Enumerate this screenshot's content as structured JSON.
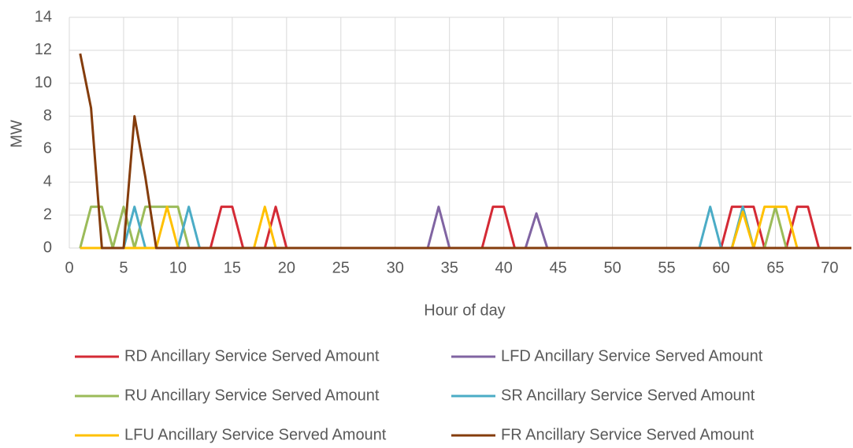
{
  "chart_data": {
    "type": "line",
    "x_label": "Hour of day",
    "y_label": "MW",
    "x": [
      1,
      2,
      3,
      4,
      5,
      6,
      7,
      8,
      9,
      10,
      11,
      12,
      13,
      14,
      15,
      16,
      17,
      18,
      19,
      20,
      21,
      22,
      23,
      24,
      25,
      26,
      27,
      28,
      29,
      30,
      31,
      32,
      33,
      34,
      35,
      36,
      37,
      38,
      39,
      40,
      41,
      42,
      43,
      44,
      45,
      46,
      47,
      48,
      49,
      50,
      51,
      52,
      53,
      54,
      55,
      56,
      57,
      58,
      59,
      60,
      61,
      62,
      63,
      64,
      65,
      66,
      67,
      68,
      69,
      70,
      71,
      72
    ],
    "series": [
      {
        "name": "RD Ancillary Service Served Amount",
        "color": "#d42a35",
        "values": [
          0,
          0,
          0,
          0,
          0,
          0,
          0,
          0,
          0,
          0,
          0,
          0,
          0,
          2.5,
          2.5,
          0,
          0,
          0,
          2.5,
          0,
          0,
          0,
          0,
          0,
          0,
          0,
          0,
          0,
          0,
          0,
          0,
          0,
          0,
          0,
          0,
          0,
          0,
          0,
          2.5,
          2.5,
          0,
          0,
          0,
          0,
          0,
          0,
          0,
          0,
          0,
          0,
          0,
          0,
          0,
          0,
          0,
          0,
          0,
          0,
          0,
          0,
          2.5,
          2.5,
          2.5,
          0,
          0,
          0,
          2.5,
          2.5,
          0,
          0,
          0,
          0
        ]
      },
      {
        "name": "LFD Ancillary Service Served Amount",
        "color": "#8064a2",
        "values": [
          0,
          0,
          0,
          0,
          0,
          0,
          0,
          0,
          0,
          0,
          0,
          0,
          0,
          0,
          0,
          0,
          0,
          0,
          0,
          0,
          0,
          0,
          0,
          0,
          0,
          0,
          0,
          0,
          0,
          0,
          0,
          0,
          0,
          2.5,
          0,
          0,
          0,
          0,
          0,
          0,
          0,
          0,
          2.1,
          0,
          0,
          0,
          0,
          0,
          0,
          0,
          0,
          0,
          0,
          0,
          0,
          0,
          0,
          0,
          0,
          0,
          0,
          0,
          0,
          0,
          0,
          0,
          0,
          0,
          0,
          0,
          0,
          0
        ]
      },
      {
        "name": "RU Ancillary Service Served Amount",
        "color": "#9bbb59",
        "values": [
          0,
          2.5,
          2.5,
          0,
          2.5,
          0,
          2.5,
          2.5,
          2.5,
          2.5,
          0,
          0,
          0,
          0,
          0,
          0,
          0,
          0,
          0,
          0,
          0,
          0,
          0,
          0,
          0,
          0,
          0,
          0,
          0,
          0,
          0,
          0,
          0,
          0,
          0,
          0,
          0,
          0,
          0,
          0,
          0,
          0,
          0,
          0,
          0,
          0,
          0,
          0,
          0,
          0,
          0,
          0,
          0,
          0,
          0,
          0,
          0,
          0,
          0,
          0,
          0,
          2.5,
          0,
          0,
          2.5,
          0,
          0,
          0,
          0,
          0,
          0,
          0
        ]
      },
      {
        "name": "SR Ancillary Service Served Amount",
        "color": "#4bacc6",
        "values": [
          0,
          0,
          0,
          0,
          0,
          2.5,
          0,
          0,
          0,
          0,
          2.5,
          0,
          0,
          0,
          0,
          0,
          0,
          0,
          0,
          0,
          0,
          0,
          0,
          0,
          0,
          0,
          0,
          0,
          0,
          0,
          0,
          0,
          0,
          0,
          0,
          0,
          0,
          0,
          0,
          0,
          0,
          0,
          0,
          0,
          0,
          0,
          0,
          0,
          0,
          0,
          0,
          0,
          0,
          0,
          0,
          0,
          0,
          0,
          2.5,
          0,
          0,
          2.5,
          0,
          0,
          0,
          0,
          0,
          0,
          0,
          0,
          0,
          0
        ]
      },
      {
        "name": "LFU Ancillary Service Served Amount",
        "color": "#ffc000",
        "values": [
          0,
          0,
          0,
          0,
          0,
          0,
          0,
          0,
          2.5,
          0,
          0,
          0,
          0,
          0,
          0,
          0,
          0,
          2.5,
          0,
          0,
          0,
          0,
          0,
          0,
          0,
          0,
          0,
          0,
          0,
          0,
          0,
          0,
          0,
          0,
          0,
          0,
          0,
          0,
          0,
          0,
          0,
          0,
          0,
          0,
          0,
          0,
          0,
          0,
          0,
          0,
          0,
          0,
          0,
          0,
          0,
          0,
          0,
          0,
          0,
          0,
          0,
          2.2,
          0,
          2.5,
          2.5,
          2.5,
          0,
          0,
          0,
          0,
          0,
          0
        ]
      },
      {
        "name": "FR Ancillary Service Served Amount",
        "color": "#843c0c",
        "values": [
          11.8,
          8.5,
          0,
          0,
          0,
          8,
          4.3,
          0,
          0,
          0,
          0,
          0,
          0,
          0,
          0,
          0,
          0,
          0,
          0,
          0,
          0,
          0,
          0,
          0,
          0,
          0,
          0,
          0,
          0,
          0,
          0,
          0,
          0,
          0,
          0,
          0,
          0,
          0,
          0,
          0,
          0,
          0,
          0,
          0,
          0,
          0,
          0,
          0,
          0,
          0,
          0,
          0,
          0,
          0,
          0,
          0,
          0,
          0,
          0,
          0,
          0,
          0,
          0,
          0,
          0,
          0,
          0,
          0,
          0,
          0,
          0,
          0
        ]
      }
    ],
    "xlim": [
      0,
      72
    ],
    "xticks": [
      0,
      5,
      10,
      15,
      20,
      25,
      30,
      35,
      40,
      45,
      50,
      55,
      60,
      65,
      70
    ],
    "ylim": [
      0,
      14
    ],
    "yticks": [
      0,
      2,
      4,
      6,
      8,
      10,
      12,
      14
    ],
    "grid": true,
    "legend": "bottom"
  }
}
